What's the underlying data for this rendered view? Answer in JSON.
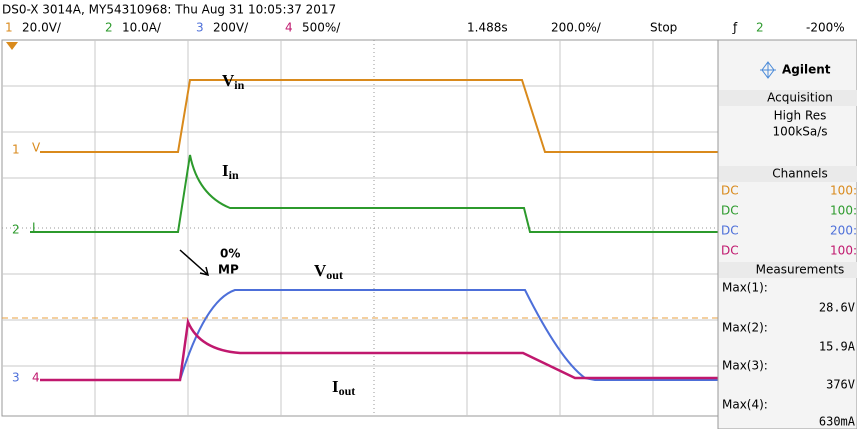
{
  "header": {
    "title": "DS0-X 3014A, MY54310968: Thu Aug 31 10:05:37 2017",
    "channels": [
      {
        "number": "1",
        "scale": "20.0V/"
      },
      {
        "number": "2",
        "scale": "10.0A/"
      },
      {
        "number": "3",
        "scale": "200V/"
      },
      {
        "number": "4",
        "scale": "500%/"
      }
    ],
    "time": {
      "position": "1.488s",
      "scale": "200.0%/"
    },
    "status": "Stop",
    "trigger": {
      "symbol": "ƒ",
      "source": "2",
      "level": "-200%"
    }
  },
  "markers": [
    {
      "number": "1",
      "unit": "V"
    },
    {
      "number": "2",
      "unit": "I"
    },
    {
      "number": "3"
    },
    {
      "number": "4"
    }
  ],
  "labels": {
    "vin": {
      "main": "V",
      "sub": "in"
    },
    "iin": {
      "main": "I",
      "sub": "in"
    },
    "vout": {
      "main": "V",
      "sub": "out"
    },
    "iout": {
      "main": "I",
      "sub": "out"
    },
    "mp": [
      "0%",
      "MP"
    ]
  },
  "panel": {
    "brand": "Agilent",
    "acquisition": {
      "title": "Acquisition",
      "mode": "High Res",
      "rate": "100kSa/s"
    },
    "channels": {
      "title": "Channels",
      "rows": [
        [
          "DC",
          "100:"
        ],
        [
          "DC",
          "100:"
        ],
        [
          "DC",
          "200:"
        ],
        [
          "DC",
          "100:"
        ]
      ]
    },
    "measurements": {
      "title": "Measurements",
      "rows": [
        [
          "Max(1):",
          "28.6V"
        ],
        [
          "Max(2):",
          "15.9A"
        ],
        [
          "Max(3):",
          "376V"
        ],
        [
          "Max(4):",
          "630mA"
        ]
      ]
    }
  }
}
